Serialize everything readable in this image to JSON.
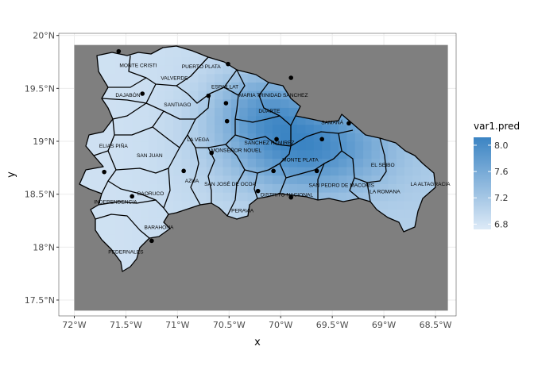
{
  "map": {
    "x_axis_title": "x",
    "y_axis_title": "y",
    "x_ticks": [
      {
        "value": -72,
        "label": "72°W"
      },
      {
        "value": -71.5,
        "label": "71.5°W"
      },
      {
        "value": -71,
        "label": "71°W"
      },
      {
        "value": -70.5,
        "label": "70.5°W"
      },
      {
        "value": -70,
        "label": "70°W"
      },
      {
        "value": -69.5,
        "label": "69.5°W"
      },
      {
        "value": -69,
        "label": "69°W"
      },
      {
        "value": -68.5,
        "label": "68.5°W"
      }
    ],
    "y_ticks": [
      {
        "value": 17.5,
        "label": "17.5°N"
      },
      {
        "value": 18,
        "label": "18°N"
      },
      {
        "value": 18.5,
        "label": "18.5°N"
      },
      {
        "value": 19,
        "label": "19°N"
      },
      {
        "value": 19.5,
        "label": "19.5°N"
      },
      {
        "value": 20,
        "label": "20°N"
      }
    ],
    "xlim": [
      -72.15,
      -68.3
    ],
    "ylim": [
      17.35,
      20.02
    ],
    "raster_extent": {
      "lon": [
        -72.0,
        -68.38
      ],
      "lat": [
        17.4,
        19.91
      ]
    },
    "background_color": "#7f7f7f",
    "grid": true
  },
  "legend": {
    "title": "var1.pred",
    "ticks": [
      6.8,
      7.2,
      7.6,
      8.0
    ],
    "tick_labels": [
      "6.8",
      "7.2",
      "7.6",
      "8.0"
    ],
    "range": [
      6.72,
      8.12
    ],
    "color_low": "#ddeaf7",
    "color_high": "#3b84c3"
  },
  "provinces": [
    {
      "name": "MONTE CRISTI",
      "lon": -71.38,
      "lat": 19.7
    },
    {
      "name": "PUERTO PLATA",
      "lon": -70.77,
      "lat": 19.69
    },
    {
      "name": "VALVERDE",
      "lon": -71.03,
      "lat": 19.58
    },
    {
      "name": "ESPAILLAT",
      "lon": -70.54,
      "lat": 19.5
    },
    {
      "name": "MARIA TRINIDAD SANCHEZ",
      "lon": -70.07,
      "lat": 19.42
    },
    {
      "name": "DAJABÓN",
      "lon": -71.48,
      "lat": 19.42
    },
    {
      "name": "SANTIAGO",
      "lon": -71.0,
      "lat": 19.33
    },
    {
      "name": "DUARTE",
      "lon": -70.11,
      "lat": 19.27
    },
    {
      "name": "SAMANÁ",
      "lon": -69.5,
      "lat": 19.16
    },
    {
      "name": "LA VEGA",
      "lon": -70.8,
      "lat": 19.0
    },
    {
      "name": "SANCHEZ RAMIREZ",
      "lon": -70.11,
      "lat": 18.97
    },
    {
      "name": "ELIAS PIÑA",
      "lon": -71.62,
      "lat": 18.94
    },
    {
      "name": "MONSEÑOR NOUEL",
      "lon": -70.43,
      "lat": 18.9
    },
    {
      "name": "SAN JUAN",
      "lon": -71.27,
      "lat": 18.85
    },
    {
      "name": "MONTE PLATA",
      "lon": -69.81,
      "lat": 18.81
    },
    {
      "name": "EL SEIBO",
      "lon": -69.01,
      "lat": 18.76
    },
    {
      "name": "AZUA",
      "lon": -70.86,
      "lat": 18.61
    },
    {
      "name": "SAN JOSÉ DE OCOA",
      "lon": -70.49,
      "lat": 18.58
    },
    {
      "name": "SAN PEDRO DE MACORÍS",
      "lon": -69.41,
      "lat": 18.57
    },
    {
      "name": "LA ALTAGRACIA",
      "lon": -68.55,
      "lat": 18.58
    },
    {
      "name": "LA ROMANA",
      "lon": -68.99,
      "lat": 18.51
    },
    {
      "name": "BAORUCO",
      "lon": -71.26,
      "lat": 18.49
    },
    {
      "name": "DISTRITO NACIONAL",
      "lon": -69.94,
      "lat": 18.48
    },
    {
      "name": "INDEPENDENCIA",
      "lon": -71.6,
      "lat": 18.41
    },
    {
      "name": "PERAVIA",
      "lon": -70.37,
      "lat": 18.33
    },
    {
      "name": "BARAHONA",
      "lon": -71.18,
      "lat": 18.17
    },
    {
      "name": "PEDERNALES",
      "lon": -71.5,
      "lat": 17.94
    }
  ],
  "stations": [
    {
      "lon": -71.57,
      "lat": 19.85
    },
    {
      "lon": -70.51,
      "lat": 19.73
    },
    {
      "lon": -69.9,
      "lat": 19.6
    },
    {
      "lon": -71.34,
      "lat": 19.45
    },
    {
      "lon": -70.7,
      "lat": 19.43
    },
    {
      "lon": -70.53,
      "lat": 19.36
    },
    {
      "lon": -70.52,
      "lat": 19.19
    },
    {
      "lon": -69.34,
      "lat": 19.17
    },
    {
      "lon": -69.6,
      "lat": 19.02
    },
    {
      "lon": -70.04,
      "lat": 19.02
    },
    {
      "lon": -70.67,
      "lat": 18.89
    },
    {
      "lon": -71.71,
      "lat": 18.71
    },
    {
      "lon": -70.94,
      "lat": 18.72
    },
    {
      "lon": -69.65,
      "lat": 18.72
    },
    {
      "lon": -70.07,
      "lat": 18.72
    },
    {
      "lon": -71.44,
      "lat": 18.48
    },
    {
      "lon": -70.22,
      "lat": 18.53
    },
    {
      "lon": -69.9,
      "lat": 18.47
    },
    {
      "lon": -71.25,
      "lat": 18.06
    }
  ]
}
